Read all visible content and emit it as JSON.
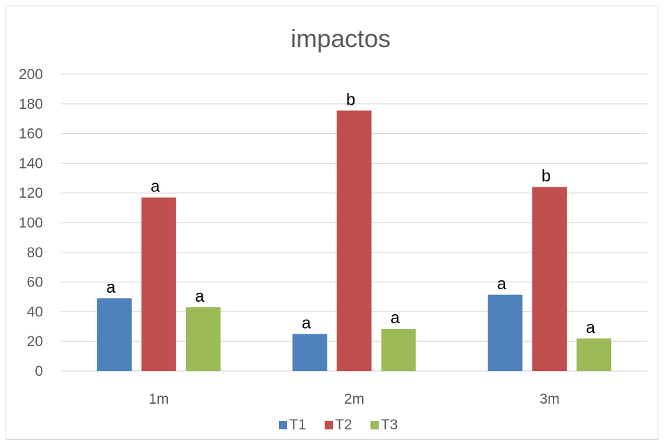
{
  "chart_data": {
    "type": "bar",
    "title": "impactos",
    "categories": [
      "1m",
      "2m",
      "3m"
    ],
    "series": [
      {
        "name": "T1",
        "color": "#4f81bd",
        "values": [
          49,
          25,
          51.5
        ],
        "labels": [
          "a",
          "a",
          "a"
        ]
      },
      {
        "name": "T2",
        "color": "#c0504d",
        "values": [
          117,
          175.5,
          124
        ],
        "labels": [
          "a",
          "b",
          "b"
        ]
      },
      {
        "name": "T3",
        "color": "#9bbb59",
        "values": [
          43,
          28.5,
          22
        ],
        "labels": [
          "a",
          "a",
          "a"
        ]
      }
    ],
    "yticks": [
      "0",
      "20",
      "40",
      "60",
      "80",
      "100",
      "120",
      "140",
      "160",
      "180",
      "200"
    ],
    "ylim": [
      0,
      200
    ],
    "grid": true,
    "legend_position": "bottom"
  }
}
